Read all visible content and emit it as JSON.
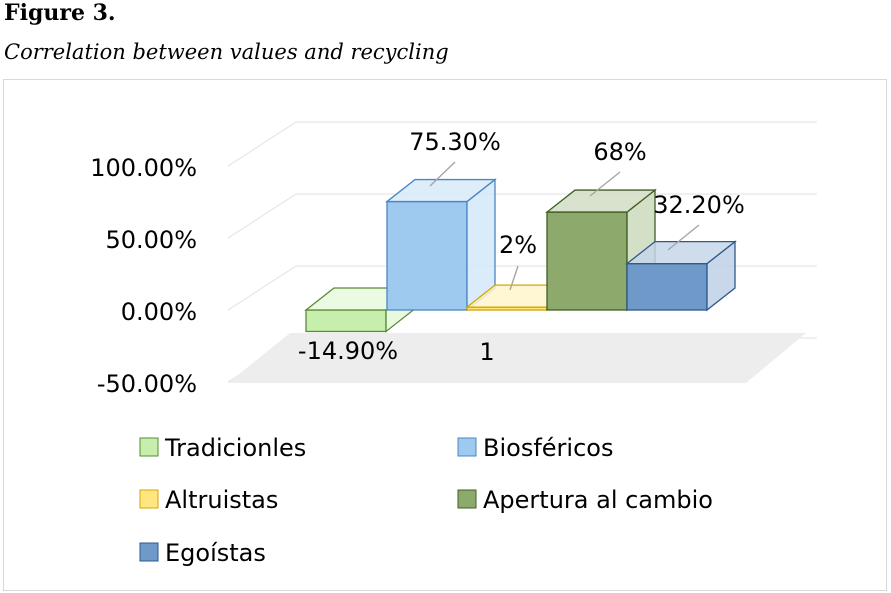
{
  "figure": {
    "label": "Figure 3.",
    "caption": "Correlation between values and recycling"
  },
  "chart_data": {
    "type": "bar",
    "style": "3d-clustered-column",
    "categories": [
      "1"
    ],
    "ylim": [
      -0.5,
      1.0
    ],
    "yticks": [
      {
        "value": 1.0,
        "label": "100.00%"
      },
      {
        "value": 0.5,
        "label": "50.00%"
      },
      {
        "value": 0.0,
        "label": "0.00%"
      },
      {
        "value": -0.5,
        "label": "-50.00%"
      }
    ],
    "grid": true,
    "legend_position": "bottom",
    "series": [
      {
        "name": "Tradicionles",
        "value": -0.149,
        "label": "-14.90%",
        "color": "#c6efad",
        "edge": "#5a8a34"
      },
      {
        "name": "Biosféricos",
        "value": 0.753,
        "label": "75.30%",
        "color": "#9ecaf0",
        "edge": "#4a86c6"
      },
      {
        "name": "Altruistas",
        "value": 0.02,
        "label": "2%",
        "color": "#ffe680",
        "edge": "#d4a500"
      },
      {
        "name": "Apertura al cambio",
        "value": 0.68,
        "label": "68%",
        "color": "#8daa6c",
        "edge": "#3f5f24"
      },
      {
        "name": "Egoístas",
        "value": 0.322,
        "label": "32.20%",
        "color": "#6f99c8",
        "edge": "#2e5a8c"
      }
    ]
  }
}
